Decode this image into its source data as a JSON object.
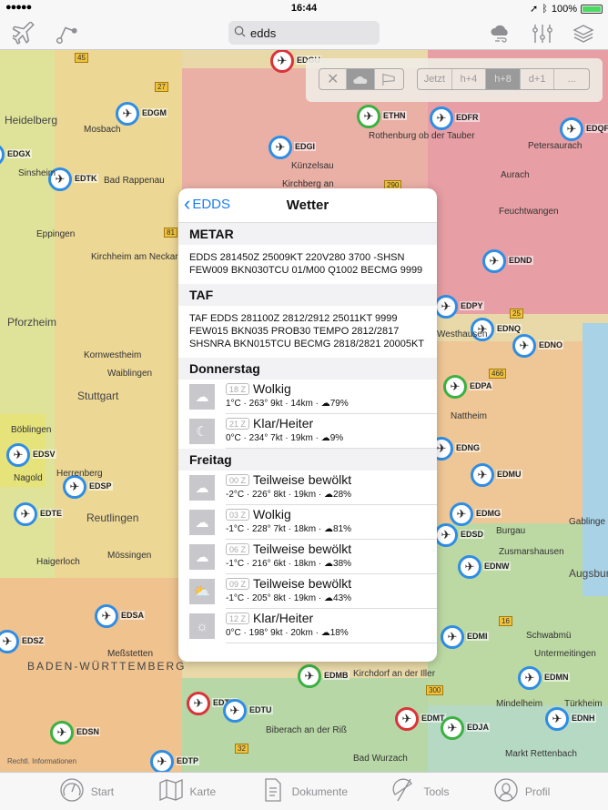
{
  "status": {
    "signal": "●●●●●",
    "time": "16:44",
    "battery": "100%"
  },
  "navbar": {
    "search_value": "edds",
    "icons": [
      "airplane-icon",
      "route-icon",
      "search-icon",
      "weather-cloud-icon",
      "sliders-icon",
      "layers-icon"
    ]
  },
  "overlay": {
    "layer_buttons": [
      "close-icon",
      "cloud-icon",
      "windsock-icon"
    ],
    "time_buttons": [
      "Jetzt",
      "h+4",
      "h+8",
      "d+1",
      "..."
    ],
    "selected_time": "h+8",
    "selected_layer": "cloud"
  },
  "panel": {
    "back": "EDDS",
    "title": "Wetter",
    "metar_header": "METAR",
    "metar": "EDDS 281450Z 25009KT 220V280 3700 -SHSN FEW009 BKN030TCU 01/M00 Q1002 BECMG 9999",
    "taf_header": "TAF",
    "taf": "TAF EDDS 281100Z 2812/2912 25011KT 9999 FEW015 BKN035 PROB30 TEMPO 2812/2817 SHSNRA BKN015TCU BECMG 2818/2821 20005KT",
    "days": [
      {
        "name": "Donnerstag",
        "rows": [
          {
            "hour": "18 Z",
            "cond": "Wolkig",
            "detail": "1°C · 263° 9kt · 14km · ☁79%",
            "icon": "cloudy-icon"
          },
          {
            "hour": "21 Z",
            "cond": "Klar/Heiter",
            "detail": "0°C · 234° 7kt · 19km · ☁9%",
            "icon": "moon-icon"
          }
        ]
      },
      {
        "name": "Freitag",
        "rows": [
          {
            "hour": "00 Z",
            "cond": "Teilweise bewölkt",
            "detail": "-2°C · 226° 8kt · 19km · ☁28%",
            "icon": "partly-cloudy-icon"
          },
          {
            "hour": "03 Z",
            "cond": "Wolkig",
            "detail": "-1°C · 228° 7kt · 18km · ☁81%",
            "icon": "cloudy-icon"
          },
          {
            "hour": "06 Z",
            "cond": "Teilweise bewölkt",
            "detail": "-1°C · 216° 6kt · 18km · ☁38%",
            "icon": "partly-cloudy-icon"
          },
          {
            "hour": "09 Z",
            "cond": "Teilweise bewölkt",
            "detail": "-1°C · 205° 8kt · 19km · ☁43%",
            "icon": "partly-sunny-icon"
          },
          {
            "hour": "12 Z",
            "cond": "Klar/Heiter",
            "detail": "0°C · 198° 9kt · 20km · ☁18%",
            "icon": "sun-icon"
          }
        ]
      }
    ]
  },
  "map": {
    "airports": [
      "EDGU",
      "EDGM",
      "ETHN",
      "EDFR",
      "EDQF",
      "EDGI",
      "EDGX",
      "EDTK",
      "EDND",
      "EDPY",
      "EDNQ",
      "EDNO",
      "EDPA",
      "EDNG",
      "EDMU",
      "EDMG",
      "EDSD",
      "EDSV",
      "EDSP",
      "EDTE",
      "EDSA",
      "EDSZ",
      "EDNW",
      "EDMI",
      "EDMB",
      "EDTM",
      "EDTU",
      "EDSN",
      "EDMT",
      "EDJA",
      "EDMN",
      "EDNH",
      "EDTP"
    ],
    "cities": [
      "Heidelberg",
      "Mosbach",
      "Sinsheim",
      "Bad Rappenau",
      "Eppingen",
      "Kirchheim am Neckar",
      "Pforzheim",
      "Kornwestheim",
      "Waiblingen",
      "Stuttgart",
      "Böblingen",
      "Herrenberg",
      "Nagold",
      "Reutlingen",
      "Mössingen",
      "Haigerloch",
      "Meßstetten",
      "BADEN-WÜRTTEMBERG",
      "Künzelsau",
      "Kirchberg an",
      "Rothenburg ob der Tauber",
      "Petersaurach",
      "Aurach",
      "Feuchtwangen",
      "Westhausen",
      "Nattheim",
      "Burgau",
      "Zusmarshausen",
      "Augsburg",
      "Gablinge",
      "Schwabmü",
      "Untermeitingen",
      "Mindelheim",
      "Türkheim",
      "Markt Rettenbach",
      "Kirchdorf an der Iller",
      "Biberach an der Riß",
      "Bad Wurzach"
    ],
    "roads": [
      "45",
      "27",
      "81",
      "290",
      "25",
      "466",
      "16",
      "300",
      "32"
    ],
    "attribution": "Rechtl. Informationen",
    "colors": {
      "pink": "#e9a2a8",
      "orange": "#f0c08a",
      "yellow": "#e8e08a",
      "green": "#b9d8a0",
      "blue": "#a9d2e6"
    }
  },
  "tabbar": {
    "items": [
      {
        "label": "Start",
        "icon": "speedometer-icon"
      },
      {
        "label": "Karte",
        "icon": "map-icon"
      },
      {
        "label": "Dokumente",
        "icon": "document-icon"
      },
      {
        "label": "Tools",
        "icon": "protractor-icon"
      },
      {
        "label": "Profil",
        "icon": "profile-icon"
      }
    ]
  }
}
